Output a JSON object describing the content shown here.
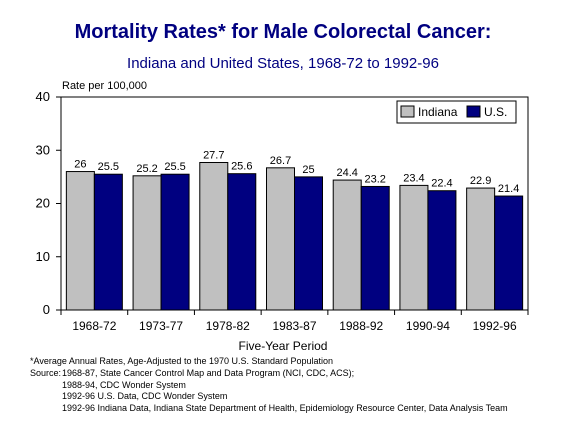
{
  "chart_data": {
    "type": "bar",
    "title": "Mortality Rates* for Male Colorectal Cancer:",
    "subtitle": "Indiana and United States, 1968-72 to 1992-96",
    "ylabel": "Rate per 100,000",
    "xlabel": "Five-Year Period",
    "ylim": [
      0,
      40
    ],
    "yticks": [
      0,
      10,
      20,
      30,
      40
    ],
    "grid": false,
    "legend_position": "top-right",
    "categories": [
      "1968-72",
      "1973-77",
      "1978-82",
      "1983-87",
      "1988-92",
      "1990-94",
      "1992-96"
    ],
    "series": [
      {
        "name": "Indiana",
        "color": "#c0c0c0",
        "values": [
          26,
          25.2,
          27.7,
          26.7,
          24.4,
          23.4,
          22.9
        ]
      },
      {
        "name": "U.S.",
        "color": "#000080",
        "values": [
          25.5,
          25.5,
          25.6,
          25,
          23.2,
          22.4,
          21.4
        ]
      }
    ]
  },
  "footnote": "*Average Annual Rates, Age-Adjusted to the 1970 U.S. Standard Population",
  "source": {
    "label": "Source:",
    "lines": [
      "1968-87, State Cancer Control Map and Data Program (NCI, CDC, ACS);",
      "1988-94, CDC Wonder System",
      "1992-96 U.S. Data, CDC Wonder System",
      "1992-96 Indiana Data, Indiana State Department of Health, Epidemiology Resource Center, Data Analysis Team"
    ]
  }
}
